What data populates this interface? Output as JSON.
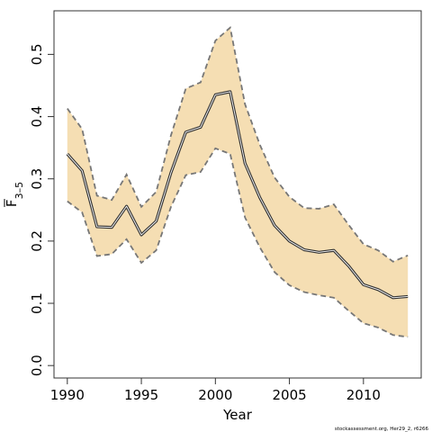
{
  "chart_data": {
    "type": "line",
    "xlabel": "Year",
    "ylabel": "F",
    "ylabel_sub": "3–5",
    "ylabel_overline": true,
    "xlim": [
      1989.1,
      2013.9
    ],
    "ylim": [
      -0.02,
      0.57
    ],
    "x_ticks": [
      1990,
      1995,
      2000,
      2005,
      2010
    ],
    "x_tick_labels": [
      "1990",
      "1995",
      "2000",
      "2005",
      "2010"
    ],
    "y_ticks": [
      0.0,
      0.1,
      0.2,
      0.3,
      0.4,
      0.5
    ],
    "y_tick_labels": [
      "0.0",
      "0.1",
      "0.2",
      "0.3",
      "0.4",
      "0.5"
    ],
    "grid": false,
    "legend": "none",
    "series": [
      {
        "role": "estimate",
        "color": "#333333",
        "points": [
          [
            1990,
            0.34
          ],
          [
            1991,
            0.313
          ],
          [
            1992,
            0.223
          ],
          [
            1993,
            0.222
          ],
          [
            1994,
            0.256
          ],
          [
            1995,
            0.21
          ],
          [
            1996,
            0.232
          ],
          [
            1997,
            0.31
          ],
          [
            1998,
            0.375
          ],
          [
            1999,
            0.383
          ],
          [
            2000,
            0.435
          ],
          [
            2001,
            0.44
          ],
          [
            2002,
            0.325
          ],
          [
            2003,
            0.27
          ],
          [
            2004,
            0.225
          ],
          [
            2005,
            0.2
          ],
          [
            2006,
            0.186
          ],
          [
            2007,
            0.182
          ],
          [
            2008,
            0.185
          ],
          [
            2009,
            0.16
          ],
          [
            2010,
            0.13
          ],
          [
            2011,
            0.122
          ],
          [
            2012,
            0.109
          ],
          [
            2013,
            0.111
          ]
        ]
      },
      {
        "role": "upper_bound",
        "color": "#777777",
        "points": [
          [
            1990,
            0.413
          ],
          [
            1991,
            0.38
          ],
          [
            1992,
            0.273
          ],
          [
            1993,
            0.266
          ],
          [
            1994,
            0.307
          ],
          [
            1995,
            0.255
          ],
          [
            1996,
            0.279
          ],
          [
            1997,
            0.37
          ],
          [
            1998,
            0.445
          ],
          [
            1999,
            0.455
          ],
          [
            2000,
            0.522
          ],
          [
            2001,
            0.543
          ],
          [
            2002,
            0.42
          ],
          [
            2003,
            0.355
          ],
          [
            2004,
            0.302
          ],
          [
            2005,
            0.271
          ],
          [
            2006,
            0.253
          ],
          [
            2007,
            0.252
          ],
          [
            2008,
            0.259
          ],
          [
            2009,
            0.226
          ],
          [
            2010,
            0.195
          ],
          [
            2011,
            0.185
          ],
          [
            2012,
            0.167
          ],
          [
            2013,
            0.177
          ]
        ]
      },
      {
        "role": "lower_bound",
        "color": "#777777",
        "points": [
          [
            1990,
            0.264
          ],
          [
            1991,
            0.246
          ],
          [
            1992,
            0.176
          ],
          [
            1993,
            0.179
          ],
          [
            1994,
            0.203
          ],
          [
            1995,
            0.165
          ],
          [
            1996,
            0.185
          ],
          [
            1997,
            0.255
          ],
          [
            1998,
            0.306
          ],
          [
            1999,
            0.311
          ],
          [
            2000,
            0.349
          ],
          [
            2001,
            0.34
          ],
          [
            2002,
            0.238
          ],
          [
            2003,
            0.19
          ],
          [
            2004,
            0.15
          ],
          [
            2005,
            0.129
          ],
          [
            2006,
            0.118
          ],
          [
            2007,
            0.113
          ],
          [
            2008,
            0.109
          ],
          [
            2009,
            0.088
          ],
          [
            2010,
            0.068
          ],
          [
            2011,
            0.061
          ],
          [
            2012,
            0.049
          ],
          [
            2013,
            0.046
          ]
        ]
      }
    ],
    "band_color": "#f5deb3"
  },
  "credit": "stockassessment.org, Her29_2, r6266"
}
